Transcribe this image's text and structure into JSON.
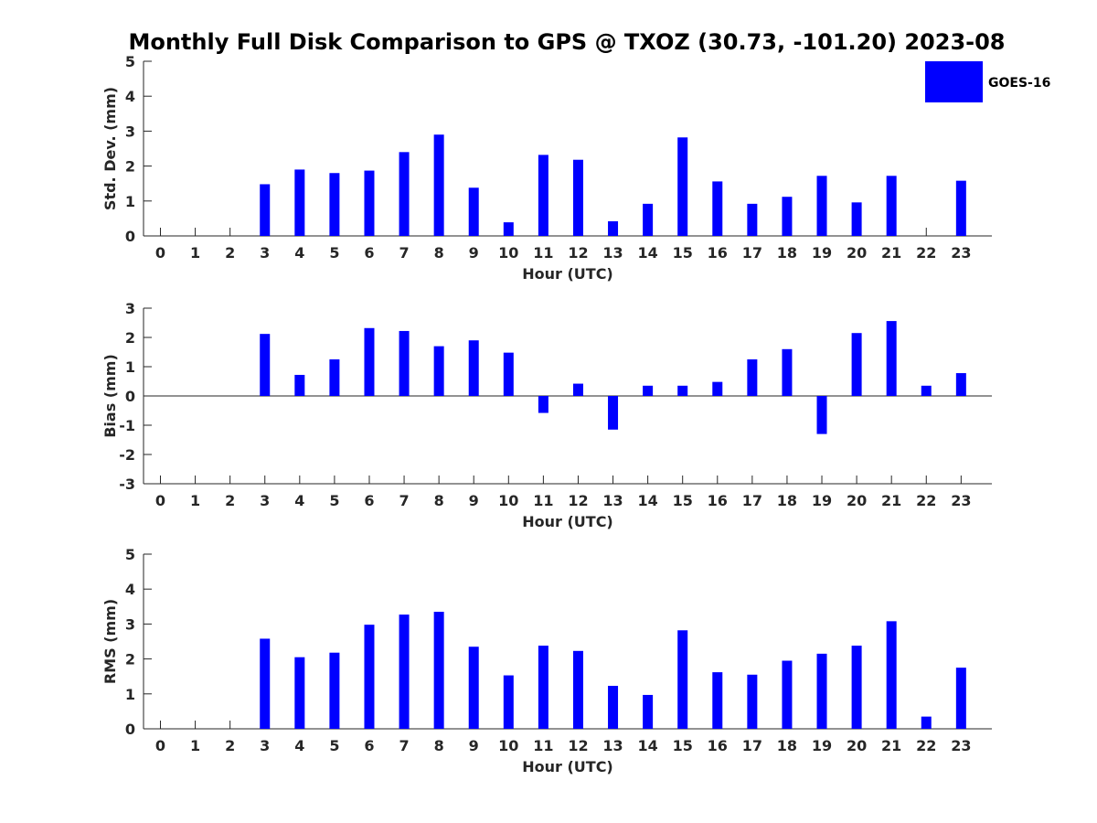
{
  "figure": {
    "title": "Monthly Full Disk Comparison to GPS @ TXOZ (30.73, -101.20) 2023-08",
    "legend": {
      "label": "GOES-16",
      "color": "#0000ff",
      "position": "top-right"
    }
  },
  "chart_data": [
    {
      "type": "bar",
      "xlabel": "Hour (UTC)",
      "ylabel": "Std. Dev. (mm)",
      "ylim": [
        0,
        5
      ],
      "yticks": [
        0,
        1,
        2,
        3,
        4,
        5
      ],
      "categories": [
        "0",
        "1",
        "2",
        "3",
        "4",
        "5",
        "6",
        "7",
        "8",
        "9",
        "10",
        "11",
        "12",
        "13",
        "14",
        "15",
        "16",
        "17",
        "18",
        "19",
        "20",
        "21",
        "22",
        "23"
      ],
      "series": [
        {
          "name": "GOES-16",
          "color": "#0000ff",
          "values": [
            null,
            null,
            null,
            1.48,
            1.9,
            1.8,
            1.87,
            2.4,
            2.9,
            1.38,
            0.39,
            2.32,
            2.18,
            0.42,
            0.92,
            2.82,
            1.56,
            0.92,
            1.12,
            1.72,
            0.96,
            1.72,
            null,
            1.58
          ]
        }
      ]
    },
    {
      "type": "bar",
      "xlabel": "Hour (UTC)",
      "ylabel": "Bias (mm)",
      "ylim": [
        -3,
        3
      ],
      "yticks": [
        -3,
        -2,
        -1,
        0,
        1,
        2,
        3
      ],
      "zero_line": true,
      "categories": [
        "0",
        "1",
        "2",
        "3",
        "4",
        "5",
        "6",
        "7",
        "8",
        "9",
        "10",
        "11",
        "12",
        "13",
        "14",
        "15",
        "16",
        "17",
        "18",
        "19",
        "20",
        "21",
        "22",
        "23"
      ],
      "series": [
        {
          "name": "GOES-16",
          "color": "#0000ff",
          "values": [
            null,
            null,
            null,
            2.12,
            0.72,
            1.25,
            2.32,
            2.22,
            1.7,
            1.9,
            1.48,
            -0.58,
            0.42,
            -1.15,
            0.35,
            0.35,
            0.48,
            1.25,
            1.6,
            -1.3,
            2.15,
            2.56,
            0.35,
            0.78
          ]
        }
      ]
    },
    {
      "type": "bar",
      "xlabel": "Hour (UTC)",
      "ylabel": "RMS (mm)",
      "ylim": [
        0,
        5
      ],
      "yticks": [
        0,
        1,
        2,
        3,
        4,
        5
      ],
      "categories": [
        "0",
        "1",
        "2",
        "3",
        "4",
        "5",
        "6",
        "7",
        "8",
        "9",
        "10",
        "11",
        "12",
        "13",
        "14",
        "15",
        "16",
        "17",
        "18",
        "19",
        "20",
        "21",
        "22",
        "23"
      ],
      "series": [
        {
          "name": "GOES-16",
          "color": "#0000ff",
          "values": [
            null,
            null,
            null,
            2.58,
            2.05,
            2.18,
            2.98,
            3.27,
            3.35,
            2.35,
            1.53,
            2.38,
            2.23,
            1.23,
            0.97,
            2.82,
            1.62,
            1.55,
            1.95,
            2.15,
            2.38,
            3.08,
            0.35,
            1.75
          ]
        }
      ]
    }
  ]
}
